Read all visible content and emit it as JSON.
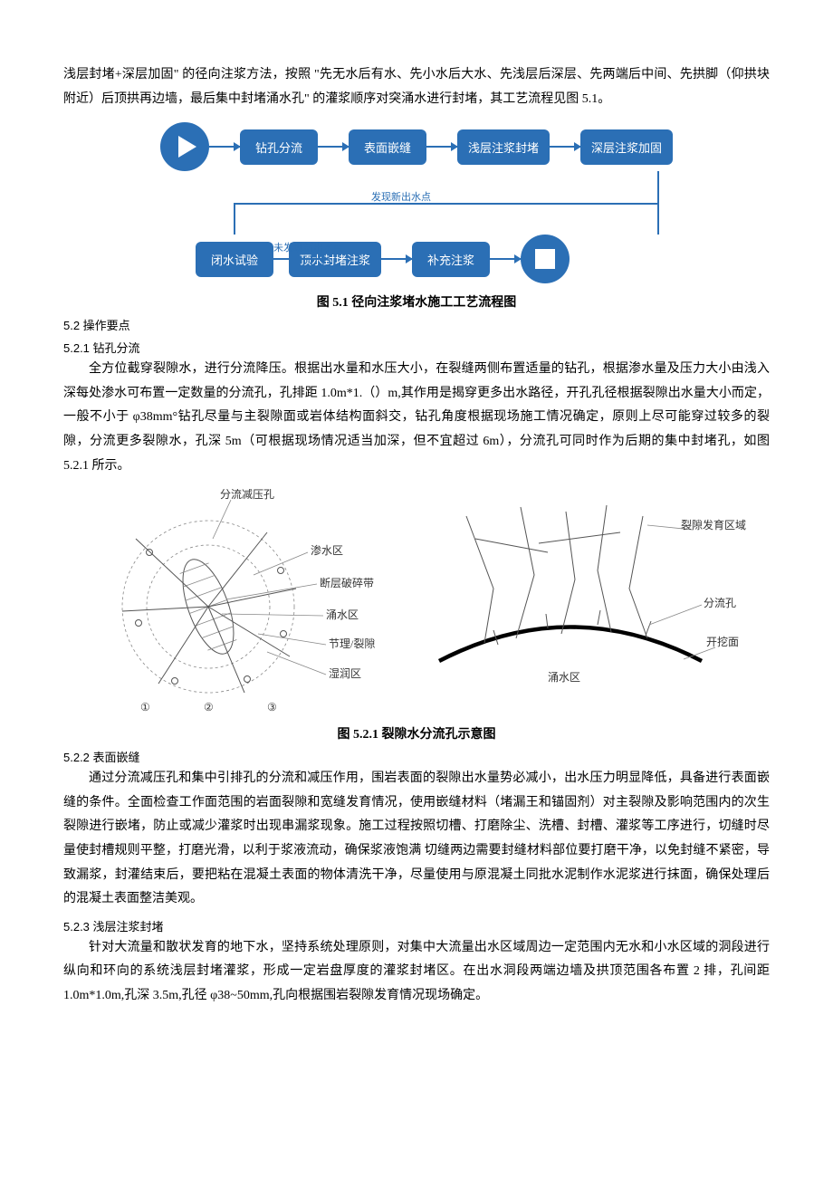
{
  "intro": {
    "p1": "浅层封堵+深层加固\" 的径向注浆方法，按照 \"先无水后有水、先小水后大水、先浅层后深层、先两端后中间、先拱脚（仰拱块附近）后顶拱再边墙，最后集中封堵涌水孔\" 的灌浆顺序对突涌水进行封堵，其工艺流程见图 5.1。"
  },
  "flowchart": {
    "node_color": "#2b6fb5",
    "arrow_color": "#2b6fb5",
    "start": "▶",
    "nodes_top": [
      "钻孔分流",
      "表面嵌缝",
      "浅层注浆封堵",
      "深层注浆加固"
    ],
    "nodes_bottom": [
      "闭水试验",
      "顶水封堵注浆",
      "补充注浆"
    ],
    "edge_label_found": "发现新出水点",
    "edge_label_notfound": "未发现新出水点",
    "end": "■",
    "caption": "图 5.1 径向注浆堵水施工工艺流程图"
  },
  "s52": {
    "title": "5.2  操作要点"
  },
  "s521": {
    "title": "5.2.1  钻孔分流",
    "body": "全方位截穿裂隙水，进行分流降压。根据出水量和水压大小，在裂缝两侧布置适量的钻孔，根据渗水量及压力大小由浅入深每处渗水可布置一定数量的分流孔，孔排距 1.0m*1.（）m,其作用是揭穿更多出水路径，开孔孔径根据裂隙出水量大小而定，一般不小于 φ38mm°钻孔尽量与主裂隙面或岩体结构面斜交，钻孔角度根据现场施工情况确定，原则上尽可能穿过较多的裂隙，分流更多裂隙水，孔深 5m（可根据现场情况适当加深，但不宜超过 6m），分流孔可同时作为后期的集中封堵孔，如图 5.2.1 所示。"
  },
  "diagram521": {
    "left_labels": {
      "top": "分流减压孔",
      "seep": "渗水区",
      "fault": "断层破碎带",
      "gush": "涌水区",
      "joint": "节理/裂隙",
      "wet": "湿润区"
    },
    "right_labels": {
      "fissure_zone": "裂隙发育区域",
      "divert_hole": "分流孔",
      "excavation": "开挖面",
      "gush": "涌水区"
    },
    "caption": "图 5.2.1 裂隙水分流孔示意图"
  },
  "s522": {
    "title": "5.2.2  表面嵌缝",
    "body": "通过分流减压孔和集中引排孔的分流和减压作用，围岩表面的裂隙出水量势必减小，出水压力明显降低，具备进行表面嵌缝的条件。全面检查工作面范围的岩面裂隙和宽缝发育情况，使用嵌缝材料（堵漏王和锚固剂）对主裂隙及影响范围内的次生裂隙进行嵌堵，防止或减少灌浆时出现串漏浆现象。施工过程按照切槽、打磨除尘、洗槽、封槽、灌浆等工序进行，切缝时尽量使封槽规则平整，打磨光滑，以利于浆液流动，确保浆液饱满  切缝两边需要封缝材料部位要打磨干净，以免封缝不紧密，导致漏浆，封灌结束后，要把粘在混凝土表面的物体清洗干净，尽量使用与原混凝土同批水泥制作水泥浆进行抹面，确保处理后的混凝土表面整洁美观。"
  },
  "s523": {
    "title": "5.2.3  浅层注浆封堵",
    "body": "针对大流量和散状发育的地下水，坚持系统处理原则，对集中大流量出水区域周边一定范围内无水和小水区域的洞段进行纵向和环向的系统浅层封堵灌浆，形成一定岩盘厚度的灌浆封堵区。在出水洞段两端边墙及拱顶范围各布置 2 排，孔间距 1.0m*1.0m,孔深 3.5m,孔径 φ38~50mm,孔向根据围岩裂隙发育情况现场确定。"
  }
}
